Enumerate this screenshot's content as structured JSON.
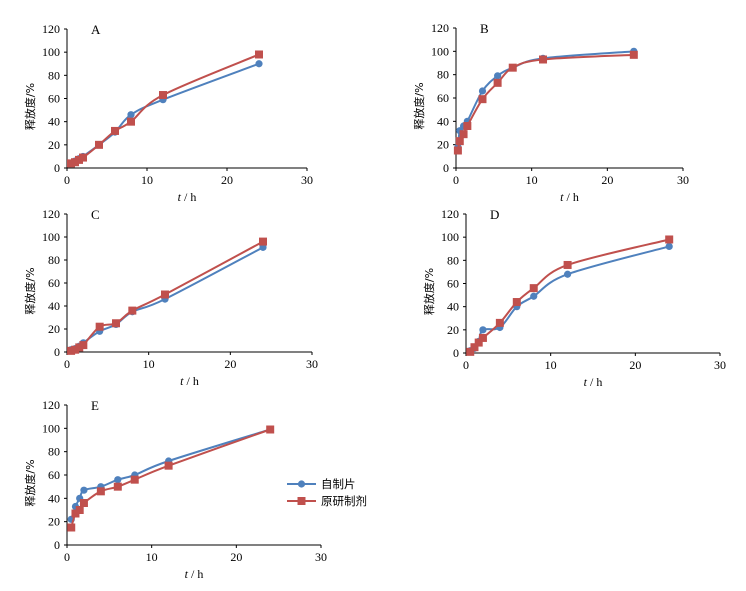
{
  "colors": {
    "self_made": "#4f81bd",
    "original": "#c0504d",
    "axis": "#000000"
  },
  "legend": {
    "self_made": "自制片",
    "original": "原研制剂"
  },
  "chart_data": [
    {
      "panel": "A",
      "type": "line",
      "xlabel_var": "t",
      "xlabel_unit": " / h",
      "ylabel": "释放度/%",
      "xlim": [
        0,
        30
      ],
      "ylim": [
        0,
        120
      ],
      "xticks": [
        0,
        10,
        20,
        30
      ],
      "yticks": [
        0,
        20,
        40,
        60,
        80,
        100,
        120
      ],
      "series": [
        {
          "name": "自制片",
          "x": [
            0.5,
            1,
            1.5,
            2,
            4,
            6,
            8,
            12,
            24
          ],
          "y": [
            4,
            6,
            8,
            10,
            20,
            31,
            46,
            59,
            90
          ]
        },
        {
          "name": "原研制剂",
          "x": [
            0.5,
            1,
            1.5,
            2,
            4,
            6,
            8,
            12,
            24
          ],
          "y": [
            4,
            5,
            7,
            9,
            20,
            32,
            40,
            63,
            98
          ]
        }
      ]
    },
    {
      "panel": "B",
      "type": "line",
      "xlabel_var": "t",
      "xlabel_unit": " / h",
      "ylabel": "释放度/%",
      "xlim": [
        0,
        30
      ],
      "ylim": [
        0,
        120
      ],
      "xticks": [
        0,
        10,
        20,
        30
      ],
      "yticks": [
        0,
        20,
        40,
        60,
        80,
        100,
        120
      ],
      "series": [
        {
          "name": "自制片",
          "x": [
            0.25,
            0.5,
            1,
            1.5,
            3.5,
            5.5,
            7.5,
            11.5,
            23.5
          ],
          "y": [
            18,
            32,
            36,
            40,
            66,
            79,
            86,
            94,
            100
          ]
        },
        {
          "name": "原研制剂",
          "x": [
            0.25,
            0.5,
            1,
            1.5,
            3.5,
            5.5,
            7.5,
            11.5,
            23.5
          ],
          "y": [
            15,
            23,
            29,
            36,
            59,
            73,
            86,
            93,
            97
          ]
        }
      ]
    },
    {
      "panel": "C",
      "type": "line",
      "xlabel_var": "t",
      "xlabel_unit": " / h",
      "ylabel": "释放度/%",
      "xlim": [
        0,
        30
      ],
      "ylim": [
        0,
        120
      ],
      "xticks": [
        0,
        10,
        20,
        30
      ],
      "yticks": [
        0,
        20,
        40,
        60,
        80,
        100,
        120
      ],
      "series": [
        {
          "name": "自制片",
          "x": [
            0.5,
            1,
            1.5,
            2,
            4,
            6,
            8,
            12,
            24
          ],
          "y": [
            2,
            3,
            5,
            8,
            18,
            24,
            35,
            46,
            91
          ]
        },
        {
          "name": "原研制剂",
          "x": [
            0.5,
            1,
            1.5,
            2,
            4,
            6,
            8,
            12,
            24
          ],
          "y": [
            1,
            2,
            4,
            6,
            22,
            25,
            36,
            50,
            96
          ]
        }
      ]
    },
    {
      "panel": "D",
      "type": "line",
      "xlabel_var": "t",
      "xlabel_unit": " / h",
      "ylabel": "释放度/%",
      "xlim": [
        0,
        30
      ],
      "ylim": [
        0,
        120
      ],
      "xticks": [
        0,
        10,
        20,
        30
      ],
      "yticks": [
        0,
        20,
        40,
        60,
        80,
        100,
        120
      ],
      "series": [
        {
          "name": "自制片",
          "x": [
            0.5,
            1,
            1.5,
            2,
            4,
            6,
            8,
            12,
            24
          ],
          "y": [
            2,
            4,
            10,
            20,
            22,
            40,
            49,
            68,
            92
          ]
        },
        {
          "name": "原研制剂",
          "x": [
            0.5,
            1,
            1.5,
            2,
            4,
            6,
            8,
            12,
            24
          ],
          "y": [
            1,
            5,
            9,
            13,
            26,
            44,
            56,
            76,
            98
          ]
        }
      ]
    },
    {
      "panel": "E",
      "type": "line",
      "xlabel_var": "t",
      "xlabel_unit": " / h",
      "ylabel": "释放度/%",
      "xlim": [
        0,
        30
      ],
      "ylim": [
        0,
        120
      ],
      "xticks": [
        0,
        10,
        20,
        30
      ],
      "yticks": [
        0,
        20,
        40,
        60,
        80,
        100,
        120
      ],
      "series": [
        {
          "name": "自制片",
          "x": [
            0.5,
            1,
            1.5,
            2,
            4,
            6,
            8,
            12,
            24
          ],
          "y": [
            22,
            33,
            40,
            47,
            50,
            56,
            60,
            72,
            99
          ]
        },
        {
          "name": "原研制剂",
          "x": [
            0.5,
            1,
            1.5,
            2,
            4,
            6,
            8,
            12,
            24
          ],
          "y": [
            15,
            27,
            30,
            36,
            46,
            50,
            56,
            68,
            99
          ]
        }
      ]
    }
  ]
}
